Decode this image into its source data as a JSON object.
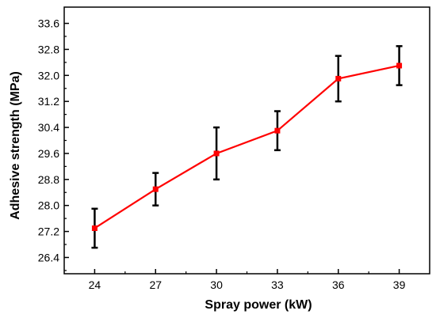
{
  "chart_data": {
    "type": "line",
    "xlabel": "Spray power (kW)",
    "ylabel": "Adhesive strength (MPa)",
    "xlim": [
      22.5,
      40.5
    ],
    "ylim": [
      25.9,
      34.1
    ],
    "xticks": [
      "24",
      "27",
      "30",
      "33",
      "36",
      "39"
    ],
    "yticks": [
      "26.4",
      "27.2",
      "28.0",
      "28.8",
      "29.6",
      "30.4",
      "31.2",
      "32.0",
      "32.8",
      "33.6"
    ],
    "series": [
      {
        "x": [
          24,
          27,
          30,
          33,
          36,
          39
        ],
        "y": [
          27.3,
          28.5,
          29.6,
          30.3,
          31.9,
          32.3
        ],
        "error": [
          0.6,
          0.5,
          0.8,
          0.6,
          0.7,
          0.6
        ],
        "color": "#ff0000",
        "marker": "square"
      }
    ],
    "errorbar_color": "#000000",
    "grid": false,
    "legend": false
  }
}
